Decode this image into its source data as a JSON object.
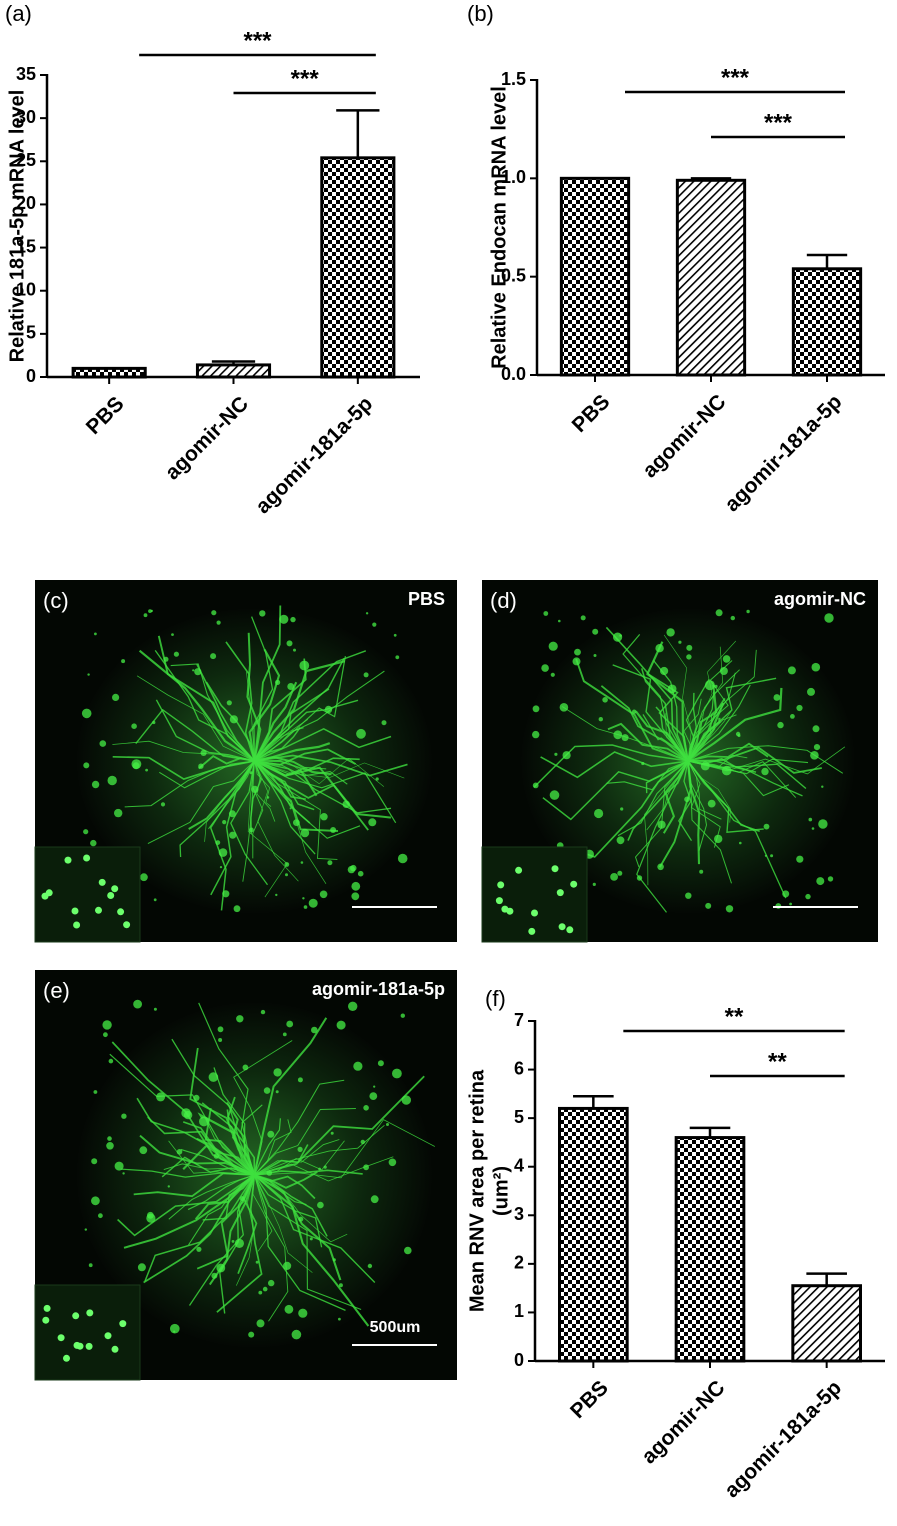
{
  "chart_data": [
    {
      "type": "bar",
      "label": "(a)",
      "ylabel": [
        "Relative 181a-5p mRNA level"
      ],
      "categories": [
        "PBS",
        "agomir-NC",
        "agomir-181a-5p"
      ],
      "values": [
        1,
        1.4,
        25.4
      ],
      "errors": [
        0,
        0.4,
        5.5
      ],
      "patterns": [
        "checker",
        "hatch",
        "checker"
      ],
      "color": "#000000",
      "ylim": [
        0,
        35
      ],
      "yticks": [
        0,
        5,
        10,
        15,
        20,
        25,
        30,
        35
      ],
      "annotations": [
        {
          "text": "***",
          "from": "PBS",
          "to": "agomir-181a-5p"
        },
        {
          "text": "***",
          "from": "agomir-NC",
          "to": "agomir-181a-5p"
        }
      ]
    },
    {
      "type": "bar",
      "label": "(b)",
      "ylabel": [
        "Relative Endocan mRNA level"
      ],
      "categories": [
        "PBS",
        "agomir-NC",
        "agomir-181a-5p"
      ],
      "values": [
        1.0,
        0.99,
        0.54
      ],
      "errors": [
        0,
        0.01,
        0.07
      ],
      "patterns": [
        "checker",
        "hatch",
        "checker"
      ],
      "color": "#000000",
      "ylim": [
        0,
        1.5
      ],
      "yticks": [
        {
          "value": 0,
          "label": "0.0"
        },
        0.5,
        {
          "value": 1,
          "label": "1.0"
        },
        1.5
      ],
      "annotations": [
        {
          "text": "***",
          "from": "PBS",
          "to": "agomir-181a-5p"
        },
        {
          "text": "***",
          "from": "agomir-NC",
          "to": "agomir-181a-5p"
        }
      ]
    },
    {
      "type": "bar",
      "label": "(f)",
      "ylabel": [
        "Mean RNV area per retina",
        "(um²)"
      ],
      "categories": [
        "PBS",
        "agomir-NC",
        "agomir-181a-5p"
      ],
      "values": [
        5.2,
        4.6,
        1.55
      ],
      "errors": [
        0.25,
        0.2,
        0.25
      ],
      "patterns": [
        "checker",
        "checker",
        "hatch"
      ],
      "color": "#000000",
      "ylim": [
        0,
        7
      ],
      "yticks": [
        0,
        1,
        2,
        3,
        4,
        5,
        6,
        7
      ],
      "annotations": [
        {
          "text": "**",
          "from": "PBS",
          "to": "agomir-181a-5p"
        },
        {
          "text": "**",
          "from": "agomir-NC",
          "to": "agomir-181a-5p"
        }
      ]
    }
  ],
  "images": [
    {
      "label": "(c)",
      "title": "PBS"
    },
    {
      "label": "(d)",
      "title": "agomir-NC"
    },
    {
      "label": "(e)",
      "title": "agomir-181a-5p",
      "scale_bar": "500um"
    }
  ]
}
